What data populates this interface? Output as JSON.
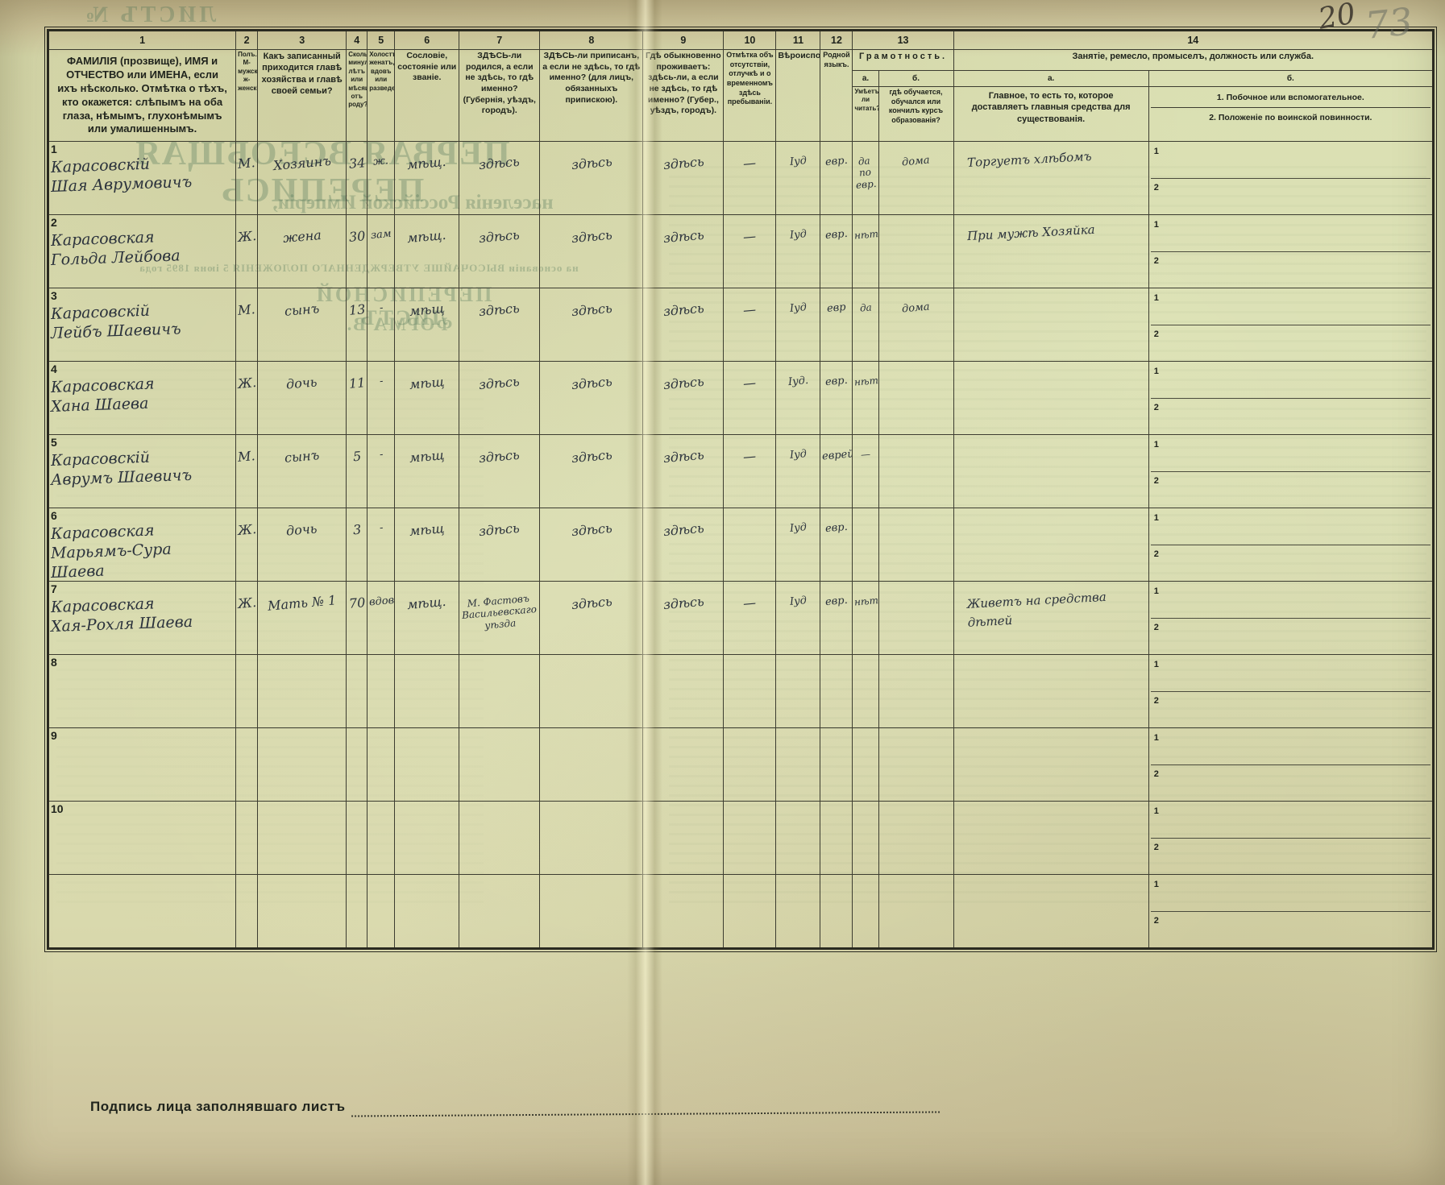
{
  "page": {
    "corner_number_ink": "20",
    "corner_number_pencil": "73",
    "signature_label": "Подпись лица заполнявшаго листъ"
  },
  "bleedthrough": {
    "top_left": "ЛИСТЪ №",
    "title1": "ПЕРВАЯ ВСЕОБЩАЯ ПЕРЕПИСЬ",
    "title2": "населенія Россійской Имперіи,",
    "title3": "на основаніи ВЫСОЧАЙШЕ УТВЕРЖДЕННАГО ПОЛОЖЕНІЯ 5 іюня 1895 года",
    "title4": "ПЕРЕПИСНОЙ ЛИСТЪ",
    "title5": "ФОРМА В."
  },
  "table": {
    "col_numbers": [
      "1",
      "2",
      "3",
      "4",
      "5",
      "6",
      "7",
      "8",
      "9",
      "10",
      "11",
      "12",
      "13",
      "14"
    ],
    "headers": {
      "c1": "ФАМИЛІЯ (прозвище), ИМЯ и ОТЧЕСТВО или ИМЕНА, если ихъ нѣсколько. Отмѣтка о тѣхъ, кто окажется: слѣпымъ на оба глаза, нѣмымъ, глухонѣмымъ или умалишеннымъ.",
      "c2": "Полъ. М-мужской. ж-женскій.",
      "c3": "Какъ записанный приходится главѣ хозяйства и главѣ своей семьи?",
      "c4": "Сколько минуло лѣтъ или мѣсяцевъ отъ роду?",
      "c5": "Холостъ, женатъ, вдовъ или разведенъ.",
      "c6": "Сословіе, состояніе или званіе.",
      "c7": "ЗДѢСЬ-ли родился, а если не здѣсь, то гдѣ именно? (Губернія, уѣздъ, городъ).",
      "c8": "ЗДѢСЬ-ли приписанъ, а если не здѣсь, то гдѣ именно? (для лицъ, обязанныхъ припискою).",
      "c9": "Гдѣ обыкновенно проживаетъ: здѣсь-ли, а если не здѣсь, то гдѣ именно? (Губер., уѣздъ, городъ).",
      "c10": "Отмѣтка объ отсутствіи, отлучкѣ и о временномъ здѣсь пребываніи.",
      "c11": "Вѣроисповѣданіе.",
      "c12": "Родной языкъ.",
      "c13": "Грамотность.",
      "c13a_label": "а.",
      "c13b_label": "б.",
      "c13a": "Умѣетъ-ли читать?",
      "c13b": "гдѣ обучается, обучался или кончилъ курсъ образованія?",
      "c14": "Занятіе, ремесло, промыселъ, должность или служба.",
      "c14a_label": "а.",
      "c14b_label": "б.",
      "c14a": "Главное, то есть то, которое доставляетъ главныя средства для существованія.",
      "c14b_1": "1. Побочное или вспомогательное.",
      "c14b_2": "2. Положеніе по воинской повинности."
    },
    "row_submarks": [
      "1",
      "2"
    ],
    "rows": [
      {
        "num": "1",
        "name_lines": [
          "Карасовскій",
          "Шая Аврумовичъ"
        ],
        "sex": "М.",
        "relation": "Хозяинъ",
        "age": "34",
        "marital": "ж.",
        "estate": "мѣщ.",
        "born": "здѣсь",
        "registered": "здѣсь",
        "resides": "здѣсь",
        "absence": "—",
        "religion": "Іуд",
        "language": "евр.",
        "reads": "да по евр.",
        "educated": "дома",
        "occupation": "Торгуетъ хлѣбомъ",
        "side": ""
      },
      {
        "num": "2",
        "name_lines": [
          "Карасовская",
          "Гольда Лейбова"
        ],
        "sex": "Ж.",
        "relation": "жена",
        "age": "30",
        "marital": "зам",
        "estate": "мѣщ.",
        "born": "здѣсь",
        "registered": "здѣсь",
        "resides": "здѣсь",
        "absence": "—",
        "religion": "Іуд",
        "language": "евр.",
        "reads": "нѣтъ",
        "educated": "",
        "occupation": "При мужѣ Хозяйка",
        "side": ""
      },
      {
        "num": "3",
        "name_lines": [
          "Карасовскій",
          "Лейбъ Шаевичъ"
        ],
        "sex": "М.",
        "relation": "сынъ",
        "age": "13",
        "marital": "-",
        "estate": "мѣщ",
        "born": "здѣсь",
        "registered": "здѣсь",
        "resides": "здѣсь",
        "absence": "—",
        "religion": "Іуд",
        "language": "евр",
        "reads": "да",
        "educated": "дома",
        "occupation": "",
        "side": ""
      },
      {
        "num": "4",
        "name_lines": [
          "Карасовская",
          "Хана Шаева"
        ],
        "sex": "Ж.",
        "relation": "дочь",
        "age": "11",
        "marital": "-",
        "estate": "мѣщ",
        "born": "здѣсь",
        "registered": "здѣсь",
        "resides": "здѣсь",
        "absence": "—",
        "religion": "Іуд.",
        "language": "евр.",
        "reads": "нѣтъ",
        "educated": "",
        "occupation": "",
        "side": ""
      },
      {
        "num": "5",
        "name_lines": [
          "Карасовскій",
          "Аврумъ Шаевичъ"
        ],
        "sex": "М.",
        "relation": "сынъ",
        "age": "5",
        "marital": "-",
        "estate": "мѣщ",
        "born": "здѣсь",
        "registered": "здѣсь",
        "resides": "здѣсь",
        "absence": "—",
        "religion": "Іуд",
        "language": "еврейск.",
        "reads": "—",
        "educated": "",
        "occupation": "",
        "side": ""
      },
      {
        "num": "6",
        "name_lines": [
          "Карасовская",
          "Марьямъ-Сура",
          "Шаева"
        ],
        "sex": "Ж.",
        "relation": "дочь",
        "age": "3",
        "marital": "-",
        "estate": "мѣщ",
        "born": "здѣсь",
        "registered": "здѣсь",
        "resides": "здѣсь",
        "absence": "",
        "religion": "Іуд",
        "language": "евр.",
        "reads": "",
        "educated": "",
        "occupation": "",
        "side": ""
      },
      {
        "num": "7",
        "name_lines": [
          "Карасовская",
          "Хая-Рохля Шаева"
        ],
        "sex": "Ж.",
        "relation": "Мать № 1",
        "age": "70",
        "marital": "вдов.",
        "estate": "мѣщ.",
        "born": "М. Фастовъ Васильевскаго уѣзда",
        "registered": "здѣсь",
        "resides": "здѣсь",
        "absence": "—",
        "religion": "Іуд",
        "language": "евр.",
        "reads": "нѣтъ",
        "educated": "",
        "occupation": "Живетъ на средства дѣтей",
        "side": ""
      },
      {
        "num": "8",
        "name_lines": [],
        "sex": "",
        "relation": "",
        "age": "",
        "marital": "",
        "estate": "",
        "born": "",
        "registered": "",
        "resides": "",
        "absence": "",
        "religion": "",
        "language": "",
        "reads": "",
        "educated": "",
        "occupation": "",
        "side": ""
      },
      {
        "num": "9",
        "name_lines": [],
        "sex": "",
        "relation": "",
        "age": "",
        "marital": "",
        "estate": "",
        "born": "",
        "registered": "",
        "resides": "",
        "absence": "",
        "religion": "",
        "language": "",
        "reads": "",
        "educated": "",
        "occupation": "",
        "side": ""
      },
      {
        "num": "10",
        "name_lines": [],
        "sex": "",
        "relation": "",
        "age": "",
        "marital": "",
        "estate": "",
        "born": "",
        "registered": "",
        "resides": "",
        "absence": "",
        "religion": "",
        "language": "",
        "reads": "",
        "educated": "",
        "occupation": "",
        "side": ""
      },
      {
        "num": "",
        "name_lines": [],
        "sex": "",
        "relation": "",
        "age": "",
        "marital": "",
        "estate": "",
        "born": "",
        "registered": "",
        "resides": "",
        "absence": "",
        "religion": "",
        "language": "",
        "reads": "",
        "educated": "",
        "occupation": "",
        "side": "",
        "blank": true
      }
    ]
  }
}
